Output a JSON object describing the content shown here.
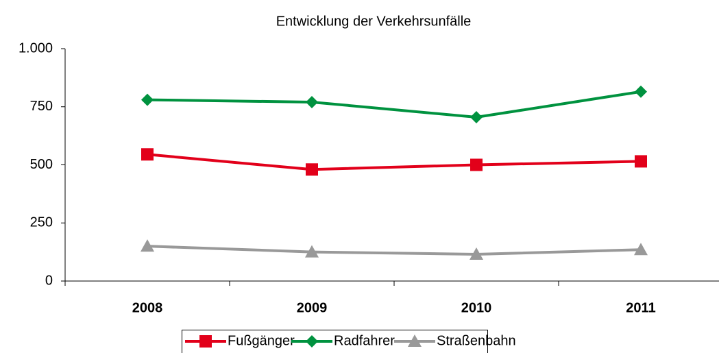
{
  "chart_data": {
    "type": "line",
    "title": "Entwicklung der Verkehrsunfälle",
    "categories": [
      "2008",
      "2009",
      "2010",
      "2011"
    ],
    "series": [
      {
        "name": "Fußgänger",
        "color": "#e2001a",
        "marker": "square",
        "values": [
          545,
          480,
          500,
          515
        ]
      },
      {
        "name": "Radfahrer",
        "color": "#00923f",
        "marker": "diamond",
        "values": [
          780,
          770,
          705,
          815
        ]
      },
      {
        "name": "Straßenbahn",
        "color": "#999999",
        "marker": "triangle",
        "values": [
          150,
          125,
          115,
          135
        ]
      }
    ],
    "ylim": [
      0,
      1000
    ],
    "yticks": [
      0,
      250,
      500,
      750,
      {
        "value": 1000,
        "label": "1.000"
      }
    ],
    "legend": "bottom"
  }
}
